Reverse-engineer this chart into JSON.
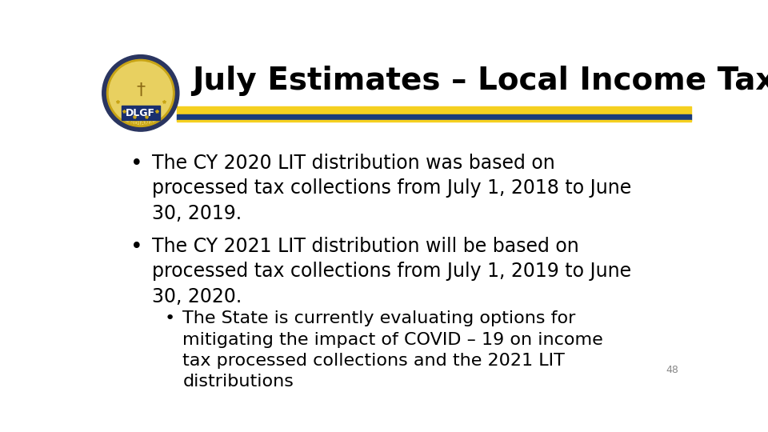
{
  "title": "July Estimates – Local Income Tax",
  "title_fontsize": 28,
  "title_color": "#000000",
  "background_color": "#ffffff",
  "stripe_yellow": "#f5d020",
  "stripe_blue": "#1a3a7a",
  "bullet1_main": "The CY 2020 LIT distribution was based on\nprocessed tax collections from July 1, 2018 to June\n30, 2019.",
  "bullet2_main": "The CY 2021 LIT distribution will be based on\nprocessed tax collections from July 1, 2019 to June\n30, 2020.",
  "sub_bullet": "The State is currently evaluating options for\nmitigating the impact of COVID – 19 on income\ntax processed collections and the 2021 LIT\ndistributions",
  "bullet_fontsize": 17,
  "sub_bullet_fontsize": 16,
  "page_number": "48",
  "text_color": "#000000",
  "logo_outer_color": "#2a3560",
  "logo_gold_color": "#c8a415",
  "logo_inner_color": "#e8d060",
  "logo_dlgf_bg": "#1a2f6e",
  "logo_indiana_color": "#c8a415"
}
